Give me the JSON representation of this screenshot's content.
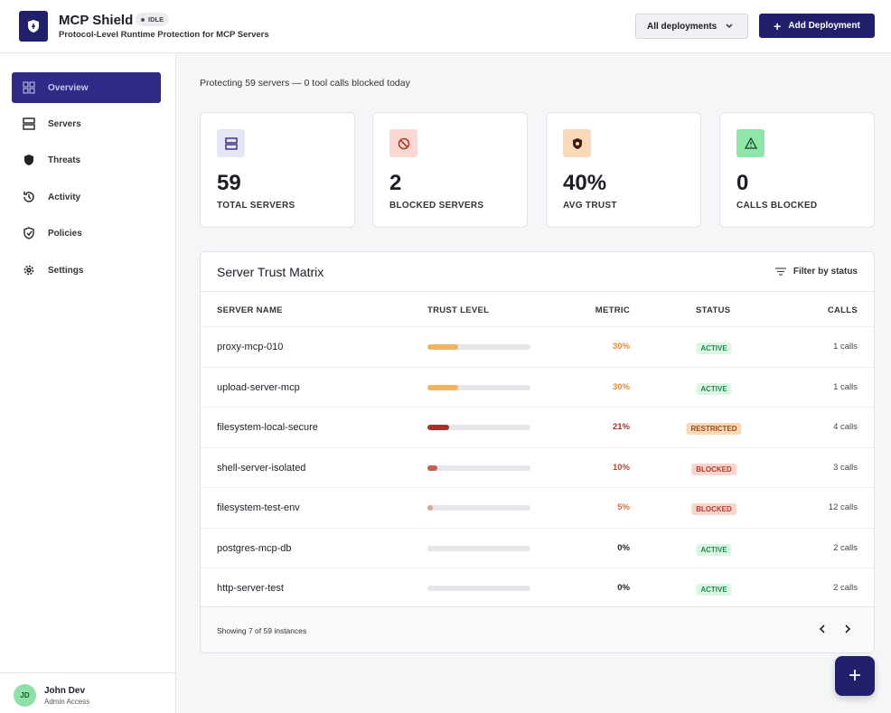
{
  "header": {
    "title": "MCP Shield",
    "badge": "IDLE",
    "subtitle": "Protocol-Level Runtime Protection for MCP Servers",
    "select": "All deployments",
    "button": "Add Deployment"
  },
  "sidebar": {
    "items": [
      "Overview",
      "Servers",
      "Threats",
      "Activity",
      "Policies",
      "Settings"
    ],
    "user": {
      "initials": "JD",
      "name": "John Dev",
      "role": "Admin Access"
    }
  },
  "summary": "Protecting 59 servers — 0 tool calls blocked today",
  "cards": [
    {
      "value": "59",
      "label": "TOTAL SERVERS"
    },
    {
      "value": "2",
      "label": "BLOCKED SERVERS"
    },
    {
      "value": "40%",
      "label": "AVG TRUST"
    },
    {
      "value": "0",
      "label": "CALLS BLOCKED"
    }
  ],
  "table": {
    "title": "Server Trust Matrix",
    "filter": "Filter by status",
    "columns": [
      "SERVER NAME",
      "TRUST LEVEL",
      "METRIC",
      "STATUS",
      "CALLS"
    ],
    "rows": [
      {
        "name": "proxy-mcp-010",
        "trust": 30,
        "metric": "30%",
        "color": "#f0b45e",
        "text_color": "#e8892a",
        "status": {
          "label": "ACTIVE",
          "color": "#1f8a4c",
          "background": "#dcf5e4"
        },
        "calls": "1 calls"
      },
      {
        "name": "upload-server-mcp",
        "trust": 30,
        "metric": "30%",
        "color": "#f0b45e",
        "text_color": "#e8892a",
        "status": {
          "label": "ACTIVE",
          "color": "#1f8a4c",
          "background": "#dcf5e4"
        },
        "calls": "1 calls"
      },
      {
        "name": "filesystem-local-secure",
        "trust": 21,
        "metric": "21%",
        "color": "#a8302a",
        "text_color": "#a8302a",
        "status": {
          "label": "RESTRICTED",
          "color": "#9a4a1a",
          "background": "#f8d8b6"
        },
        "calls": "4 calls"
      },
      {
        "name": "shell-server-isolated",
        "trust": 10,
        "metric": "10%",
        "color": "#c0604e",
        "text_color": "#b8432f",
        "status": {
          "label": "BLOCKED",
          "color": "#b23a2a",
          "background": "#f9d5ce"
        },
        "calls": "3 calls"
      },
      {
        "name": "filesystem-test-env",
        "trust": 5,
        "metric": "5%",
        "color": "#dfa596",
        "text_color": "#e0674a",
        "status": {
          "label": "BLOCKED",
          "color": "#b23a2a",
          "background": "#f9d5ce"
        },
        "calls": "12 calls"
      },
      {
        "name": "postgres-mcp-db",
        "trust": 0,
        "metric": "0%",
        "color": "#c0604e",
        "text_color": "#222",
        "status": {
          "label": "ACTIVE",
          "color": "#1f8a4c",
          "background": "#dcf5e4"
        },
        "calls": "2 calls"
      },
      {
        "name": "http-server-test",
        "trust": 0,
        "metric": "0%",
        "color": "#c0604e",
        "text_color": "#222",
        "status": {
          "label": "ACTIVE",
          "color": "#1f8a4c",
          "background": "#dcf5e4"
        },
        "calls": "2 calls"
      }
    ],
    "footer": "Showing 7 of 59 instances"
  }
}
